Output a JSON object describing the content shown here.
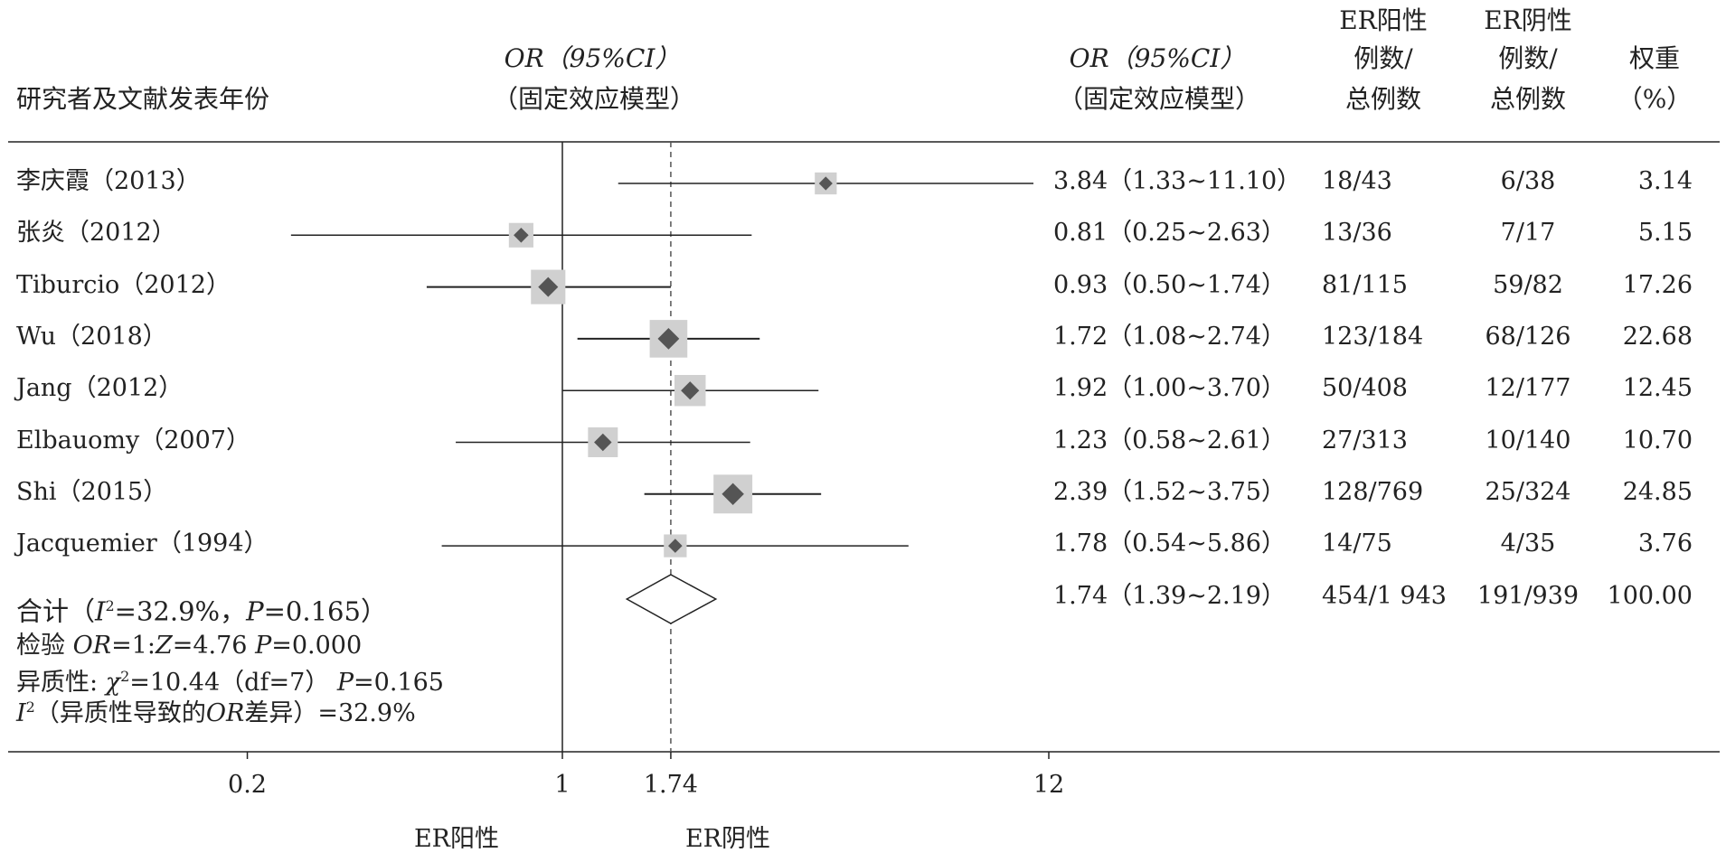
{
  "header": {
    "study_label": "研究者及文献发表年份",
    "plot_or_line1": "OR（95%CI）",
    "plot_or_line2": "（固定效应模型）",
    "table_or_line1": "OR（95%CI）",
    "table_or_line2": "（固定效应模型）",
    "pos_line1": "ER阳性",
    "pos_line2": "例数/",
    "pos_line3": "总例数",
    "neg_line1": "ER阴性",
    "neg_line2": "例数/",
    "neg_line3": "总例数",
    "weight_line1": "权重",
    "weight_line2": "（%）"
  },
  "chart_data": {
    "type": "forest",
    "scale": "log",
    "x_ticks": [
      "0.2",
      "1",
      "1.74",
      "12"
    ],
    "x_tick_values": [
      0.2,
      1,
      1.74,
      12
    ],
    "reference_line": 1,
    "pooled_line": 1.74,
    "xlabel_left": "ER阳性",
    "xlabel_right": "ER阴性",
    "studies": [
      {
        "name": "李庆霞（2013）",
        "or": 3.84,
        "lo": 1.33,
        "hi": 11.1,
        "ci_text": "3.84（1.33~11.10）",
        "pos": "18/43",
        "neg": "6/38",
        "weight": 3.14
      },
      {
        "name": "张炎（2012）",
        "or": 0.81,
        "lo": 0.25,
        "hi": 2.63,
        "ci_text": "0.81（0.25~2.63）",
        "pos": "13/36",
        "neg": "7/17",
        "weight": 5.15
      },
      {
        "name": "Tiburcio（2012）",
        "or": 0.93,
        "lo": 0.5,
        "hi": 1.74,
        "ci_text": "0.93（0.50~1.74）",
        "pos": "81/115",
        "neg": "59/82",
        "weight": 17.26
      },
      {
        "name": "Wu（2018）",
        "or": 1.72,
        "lo": 1.08,
        "hi": 2.74,
        "ci_text": "1.72（1.08~2.74）",
        "pos": "123/184",
        "neg": "68/126",
        "weight": 22.68
      },
      {
        "name": "Jang（2012）",
        "or": 1.92,
        "lo": 1.0,
        "hi": 3.7,
        "ci_text": "1.92（1.00~3.70）",
        "pos": "50/408",
        "neg": "12/177",
        "weight": 12.45
      },
      {
        "name": "Elbauomy（2007）",
        "or": 1.23,
        "lo": 0.58,
        "hi": 2.61,
        "ci_text": "1.23（0.58~2.61）",
        "pos": "27/313",
        "neg": "10/140",
        "weight": 10.7
      },
      {
        "name": "Shi（2015）",
        "or": 2.39,
        "lo": 1.52,
        "hi": 3.75,
        "ci_text": "2.39（1.52~3.75）",
        "pos": "128/769",
        "neg": "25/324",
        "weight": 24.85
      },
      {
        "name": "Jacquemier（1994）",
        "or": 1.78,
        "lo": 0.54,
        "hi": 5.86,
        "ci_text": "1.78（0.54~5.86）",
        "pos": "14/75",
        "neg": "4/35",
        "weight": 3.76
      }
    ],
    "total": {
      "name_prefix": "合计（",
      "i2_label": "I",
      "i2_sup": "2",
      "i2_value": "=32.9%，",
      "p_label": "P",
      "p_value": "=0.165）",
      "or": 1.74,
      "lo": 1.39,
      "hi": 2.19,
      "ci_text": "1.74（1.39~2.19）",
      "pos": "454/1 943",
      "neg": "191/939",
      "weight": "100.00"
    },
    "stats": {
      "test_prefix": "检验 ",
      "test_or": "OR",
      "test_mid": "=1:",
      "test_z": "Z",
      "test_z_value": "=4.76  ",
      "test_p": "P",
      "test_p_value": "=0.000",
      "het_prefix": "异质性:  ",
      "het_chi": "χ",
      "het_chi_sup": "2",
      "het_value": "=10.44（df=7）",
      "het_p": "P",
      "het_p_value": "=0.165",
      "i2_label": "I",
      "i2_sup": "2",
      "i2_text1": "（异质性导致的",
      "i2_or": "OR",
      "i2_text2": "差异）=32.9%"
    }
  }
}
